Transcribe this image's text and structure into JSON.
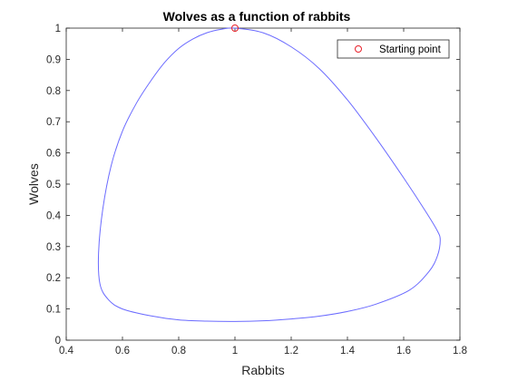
{
  "chart_data": {
    "type": "line",
    "title": "Wolves as a function of rabbits",
    "xlabel": "Rabbits",
    "ylabel": "Wolves",
    "xlim": [
      0.4,
      1.8
    ],
    "ylim": [
      0,
      1
    ],
    "xticks": [
      "0.4",
      "0.6",
      "0.8",
      "1",
      "1.2",
      "1.4",
      "1.6",
      "1.8"
    ],
    "yticks": [
      "0",
      "0.1",
      "0.2",
      "0.3",
      "0.4",
      "0.5",
      "0.6",
      "0.7",
      "0.8",
      "0.9",
      "1"
    ],
    "grid": false,
    "legend_position": "top-right",
    "series": [
      {
        "kind": "line",
        "color": "#6b6bff",
        "x": [
          1.0,
          1.1,
          1.2,
          1.3,
          1.4,
          1.5,
          1.6,
          1.68,
          1.72,
          1.73,
          1.72,
          1.69,
          1.62,
          1.5,
          1.4,
          1.3,
          1.2,
          1.1,
          1.0,
          0.9,
          0.8,
          0.7,
          0.6,
          0.55,
          0.52,
          0.515,
          0.53,
          0.56,
          0.6,
          0.65,
          0.7,
          0.75,
          0.8,
          0.85,
          0.9,
          0.95,
          1.0
        ],
        "y": [
          1.0,
          0.985,
          0.94,
          0.87,
          0.77,
          0.65,
          0.52,
          0.41,
          0.35,
          0.32,
          0.27,
          0.22,
          0.16,
          0.115,
          0.092,
          0.077,
          0.068,
          0.062,
          0.06,
          0.061,
          0.065,
          0.078,
          0.1,
          0.13,
          0.18,
          0.28,
          0.42,
          0.56,
          0.67,
          0.76,
          0.83,
          0.89,
          0.935,
          0.965,
          0.985,
          0.996,
          1.0
        ]
      },
      {
        "name": "Starting point",
        "kind": "marker",
        "color": "#e8202a",
        "x": [
          1.0
        ],
        "y": [
          1.0
        ]
      }
    ]
  }
}
